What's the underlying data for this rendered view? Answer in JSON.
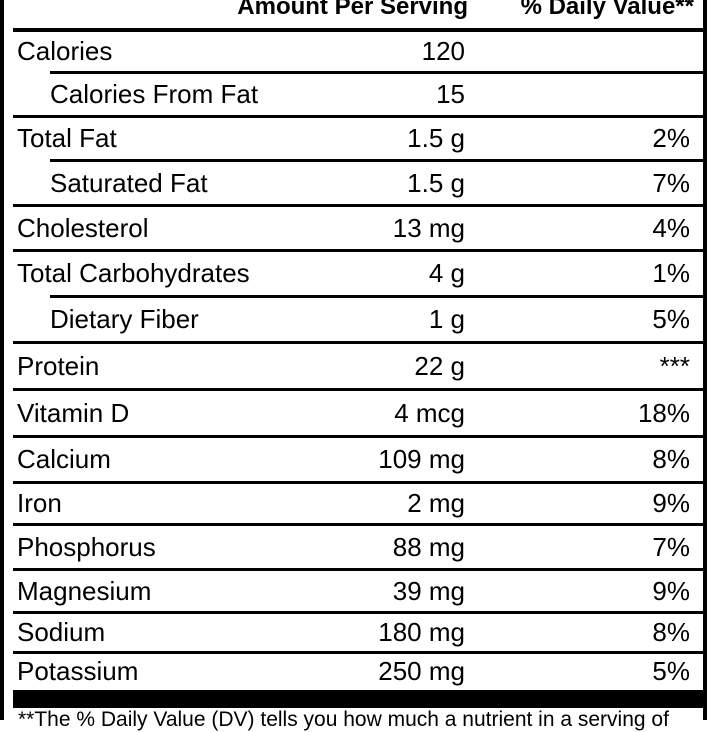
{
  "header": {
    "amount_per_serving": "Amount Per Serving",
    "daily_value": "% Daily Value**"
  },
  "rows": [
    {
      "label": "Calories",
      "amount": "120",
      "dv": "",
      "indent": false
    },
    {
      "label": "Calories From Fat",
      "amount": "15",
      "dv": "",
      "indent": true
    },
    {
      "label": "Total Fat",
      "amount": "1.5 g",
      "dv": "2%",
      "indent": false
    },
    {
      "label": "Saturated Fat",
      "amount": "1.5 g",
      "dv": "7%",
      "indent": true
    },
    {
      "label": "Cholesterol",
      "amount": "13 mg",
      "dv": "4%",
      "indent": false
    },
    {
      "label": "Total Carbohydrates",
      "amount": "4 g",
      "dv": "1%",
      "indent": false
    },
    {
      "label": "Dietary Fiber",
      "amount": "1 g",
      "dv": "5%",
      "indent": true
    },
    {
      "label": "Protein",
      "amount": "22 g",
      "dv": "***",
      "indent": false
    },
    {
      "label": "Vitamin D",
      "amount": "4 mcg",
      "dv": "18%",
      "indent": false
    },
    {
      "label": "Calcium",
      "amount": "109 mg",
      "dv": "8%",
      "indent": false
    },
    {
      "label": "Iron",
      "amount": "2 mg",
      "dv": "9%",
      "indent": false
    },
    {
      "label": "Phosphorus",
      "amount": "88 mg",
      "dv": "7%",
      "indent": false
    },
    {
      "label": "Magnesium",
      "amount": "39 mg",
      "dv": "9%",
      "indent": false
    },
    {
      "label": "Sodium",
      "amount": "180 mg",
      "dv": "8%",
      "indent": false
    },
    {
      "label": "Potassium",
      "amount": "250 mg",
      "dv": "5%",
      "indent": false
    }
  ],
  "footnote": "**The % Daily Value (DV) tells you how much a nutrient in a serving of"
}
